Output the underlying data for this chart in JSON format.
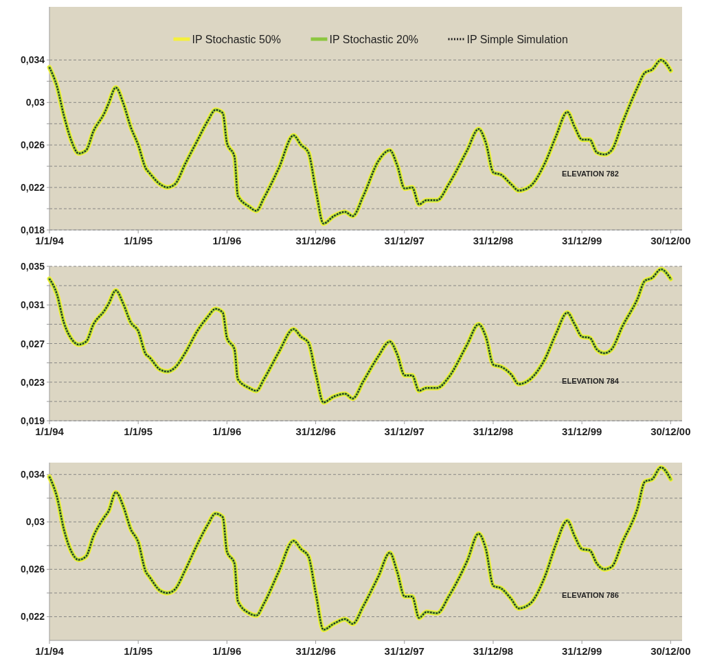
{
  "chart_data": [
    {
      "type": "line",
      "xlim": [
        "1994-01-01",
        "2001-02-15"
      ],
      "ylim": [
        0.018,
        0.039
      ],
      "grid": "y",
      "legend": "top",
      "xticks": [
        {
          "value": "1994-01-01",
          "label": "1/1/94"
        },
        {
          "value": "1995-01-01",
          "label": "1/1/95"
        },
        {
          "value": "1996-01-01",
          "label": "1/1/96"
        },
        {
          "value": "1996-12-31",
          "label": "31/12/96"
        },
        {
          "value": "1997-12-31",
          "label": "31/12/97"
        },
        {
          "value": "1998-12-31",
          "label": "31/12/98"
        },
        {
          "value": "1999-12-31",
          "label": "31/12/99"
        },
        {
          "value": "2000-12-30",
          "label": "30/12/00"
        }
      ],
      "yticks": [
        {
          "value": 0.018,
          "label": "0,018"
        },
        {
          "value": 0.02,
          "label": null
        },
        {
          "value": 0.022,
          "label": "0,022"
        },
        {
          "value": 0.024,
          "label": null
        },
        {
          "value": 0.026,
          "label": "0,026"
        },
        {
          "value": 0.028,
          "label": null
        },
        {
          "value": 0.03,
          "label": "0,03"
        },
        {
          "value": 0.032,
          "label": null
        },
        {
          "value": 0.034,
          "label": "0,034"
        }
      ],
      "annotations": [
        "ELEVATION 782"
      ],
      "x": [
        "1994-01-01",
        "1994-02-01",
        "1994-03-01",
        "1994-04-01",
        "1994-05-01",
        "1994-06-01",
        "1994-07-01",
        "1994-08-15",
        "1994-09-01",
        "1994-10-01",
        "1994-11-01",
        "1994-12-01",
        "1995-01-01",
        "1995-02-01",
        "1995-02-15",
        "1995-04-01",
        "1995-05-01",
        "1995-06-01",
        "1995-07-15",
        "1995-09-01",
        "1995-10-15",
        "1995-11-15",
        "1995-12-15",
        "1996-01-01",
        "1996-02-01",
        "1996-02-15",
        "1996-04-01",
        "1996-05-01",
        "1996-06-01",
        "1996-08-01",
        "1996-10-01",
        "1996-11-01",
        "1996-12-01",
        "1997-01-01",
        "1997-02-01",
        "1997-03-15",
        "1997-05-01",
        "1997-06-01",
        "1997-07-15",
        "1997-09-15",
        "1997-11-01",
        "1997-12-01",
        "1998-01-01",
        "1998-02-01",
        "1998-03-01",
        "1998-04-01",
        "1998-05-15",
        "1998-07-01",
        "1998-09-15",
        "1998-11-01",
        "1998-12-01",
        "1999-01-01",
        "1999-02-01",
        "1999-03-15",
        "1999-04-15",
        "1999-06-01",
        "1999-08-01",
        "1999-09-15",
        "1999-11-01",
        "1999-12-01",
        "2000-01-01",
        "2000-02-01",
        "2000-03-01",
        "2000-04-01",
        "2000-05-01",
        "2000-06-15",
        "2000-08-15",
        "2000-09-15",
        "2000-10-15",
        "2000-11-20",
        "2000-12-30"
      ],
      "series": [
        {
          "name": "IP Stochastic 50%",
          "color": "#f5f03c",
          "line_style": "solid",
          "values": [
            0.0333,
            0.0315,
            0.0288,
            0.0264,
            0.0252,
            0.0255,
            0.0273,
            0.029,
            0.0299,
            0.0314,
            0.0299,
            0.0277,
            0.026,
            0.0238,
            0.0234,
            0.0223,
            0.022,
            0.0223,
            0.0243,
            0.0264,
            0.0283,
            0.0293,
            0.029,
            0.0262,
            0.0249,
            0.0212,
            0.0202,
            0.0198,
            0.021,
            0.0238,
            0.0269,
            0.026,
            0.0253,
            0.0217,
            0.0186,
            0.0193,
            0.0197,
            0.0193,
            0.0212,
            0.0245,
            0.0255,
            0.0241,
            0.0219,
            0.022,
            0.0204,
            0.0208,
            0.0208,
            0.0223,
            0.0255,
            0.0275,
            0.0262,
            0.0234,
            0.0232,
            0.0223,
            0.0217,
            0.0221,
            0.0243,
            0.0268,
            0.0291,
            0.0277,
            0.0265,
            0.0265,
            0.0253,
            0.0251,
            0.0255,
            0.0281,
            0.0314,
            0.0328,
            0.0331,
            0.034,
            0.033
          ]
        },
        {
          "name": "IP Stochastic 20%",
          "color": "#8cc63f",
          "line_style": "solid",
          "values": [
            0.0333,
            0.0315,
            0.0288,
            0.0264,
            0.0252,
            0.0255,
            0.0273,
            0.029,
            0.0299,
            0.0314,
            0.0299,
            0.0277,
            0.026,
            0.0238,
            0.0234,
            0.0223,
            0.022,
            0.0223,
            0.0243,
            0.0264,
            0.0283,
            0.0293,
            0.029,
            0.0262,
            0.0249,
            0.0212,
            0.0202,
            0.0198,
            0.021,
            0.0238,
            0.0269,
            0.026,
            0.0253,
            0.0217,
            0.0186,
            0.0193,
            0.0197,
            0.0193,
            0.0212,
            0.0245,
            0.0255,
            0.0241,
            0.0219,
            0.022,
            0.0204,
            0.0208,
            0.0208,
            0.0223,
            0.0255,
            0.0275,
            0.0262,
            0.0234,
            0.0232,
            0.0223,
            0.0217,
            0.0221,
            0.0243,
            0.0268,
            0.0291,
            0.0277,
            0.0265,
            0.0265,
            0.0253,
            0.0251,
            0.0255,
            0.0281,
            0.0314,
            0.0328,
            0.0331,
            0.034,
            0.033
          ]
        },
        {
          "name": "IP Simple Simulation",
          "color": "#1a1a1a",
          "line_style": "dotted",
          "values": [
            0.0333,
            0.0315,
            0.0288,
            0.0264,
            0.0252,
            0.0255,
            0.0273,
            0.029,
            0.0299,
            0.0314,
            0.0299,
            0.0277,
            0.026,
            0.0238,
            0.0234,
            0.0223,
            0.022,
            0.0223,
            0.0243,
            0.0264,
            0.0283,
            0.0293,
            0.029,
            0.0262,
            0.0249,
            0.0212,
            0.0202,
            0.0198,
            0.021,
            0.0238,
            0.0269,
            0.026,
            0.0253,
            0.0217,
            0.0186,
            0.0193,
            0.0197,
            0.0193,
            0.0212,
            0.0245,
            0.0255,
            0.0241,
            0.0219,
            0.022,
            0.0204,
            0.0208,
            0.0208,
            0.0223,
            0.0255,
            0.0275,
            0.0262,
            0.0234,
            0.0232,
            0.0223,
            0.0217,
            0.0221,
            0.0243,
            0.0268,
            0.0291,
            0.0277,
            0.0265,
            0.0265,
            0.0253,
            0.0251,
            0.0255,
            0.0281,
            0.0314,
            0.0328,
            0.0331,
            0.034,
            0.033
          ]
        }
      ]
    },
    {
      "type": "line",
      "xlim": [
        "1994-01-01",
        "2001-02-15"
      ],
      "ylim": [
        0.019,
        0.035
      ],
      "grid": "y",
      "xticks": [
        {
          "value": "1994-01-01",
          "label": "1/1/94"
        },
        {
          "value": "1995-01-01",
          "label": "1/1/95"
        },
        {
          "value": "1996-01-01",
          "label": "1/1/96"
        },
        {
          "value": "1996-12-31",
          "label": "31/12/96"
        },
        {
          "value": "1997-12-31",
          "label": "31/12/97"
        },
        {
          "value": "1998-12-31",
          "label": "31/12/98"
        },
        {
          "value": "1999-12-31",
          "label": "31/12/99"
        },
        {
          "value": "2000-12-30",
          "label": "30/12/00"
        }
      ],
      "yticks": [
        {
          "value": 0.019,
          "label": "0,019"
        },
        {
          "value": 0.021,
          "label": null
        },
        {
          "value": 0.023,
          "label": "0,023"
        },
        {
          "value": 0.025,
          "label": null
        },
        {
          "value": 0.027,
          "label": "0,027"
        },
        {
          "value": 0.029,
          "label": null
        },
        {
          "value": 0.031,
          "label": "0,031"
        },
        {
          "value": 0.033,
          "label": null
        },
        {
          "value": 0.035,
          "label": "0,035"
        }
      ],
      "annotations": [
        "ELEVATION 784"
      ],
      "x": [
        "1994-01-01",
        "1994-02-01",
        "1994-03-01",
        "1994-04-01",
        "1994-05-01",
        "1994-06-01",
        "1994-07-01",
        "1994-08-15",
        "1994-09-01",
        "1994-10-01",
        "1994-11-01",
        "1994-12-01",
        "1995-01-01",
        "1995-02-01",
        "1995-02-15",
        "1995-04-01",
        "1995-05-01",
        "1995-06-01",
        "1995-07-15",
        "1995-09-01",
        "1995-10-15",
        "1995-11-15",
        "1995-12-15",
        "1996-01-01",
        "1996-02-01",
        "1996-02-15",
        "1996-04-01",
        "1996-05-01",
        "1996-06-01",
        "1996-08-01",
        "1996-10-01",
        "1996-11-01",
        "1996-12-01",
        "1997-01-01",
        "1997-02-01",
        "1997-03-15",
        "1997-05-01",
        "1997-06-01",
        "1997-07-15",
        "1997-09-15",
        "1997-11-01",
        "1997-12-01",
        "1998-01-01",
        "1998-02-01",
        "1998-03-01",
        "1998-04-01",
        "1998-05-15",
        "1998-07-01",
        "1998-09-15",
        "1998-11-01",
        "1998-12-01",
        "1999-01-01",
        "1999-02-01",
        "1999-03-15",
        "1999-04-15",
        "1999-06-01",
        "1999-08-01",
        "1999-09-15",
        "1999-11-01",
        "1999-12-01",
        "2000-01-01",
        "2000-02-01",
        "2000-03-01",
        "2000-04-01",
        "2000-05-01",
        "2000-06-15",
        "2000-08-15",
        "2000-09-15",
        "2000-10-15",
        "2000-11-20",
        "2000-12-30"
      ],
      "series": [
        {
          "color": "#f5f03c",
          "line_style": "solid",
          "values": [
            0.0337,
            0.0321,
            0.0292,
            0.0275,
            0.0269,
            0.0272,
            0.029,
            0.0304,
            0.0311,
            0.0325,
            0.0311,
            0.0292,
            0.0283,
            0.0259,
            0.0256,
            0.0243,
            0.0241,
            0.0245,
            0.0261,
            0.0283,
            0.0298,
            0.0306,
            0.0302,
            0.0276,
            0.0264,
            0.0233,
            0.0224,
            0.0221,
            0.0233,
            0.0261,
            0.0285,
            0.0277,
            0.0271,
            0.0238,
            0.0209,
            0.0215,
            0.0218,
            0.0213,
            0.0231,
            0.0257,
            0.0272,
            0.0259,
            0.0237,
            0.0237,
            0.0221,
            0.0224,
            0.0224,
            0.0235,
            0.0269,
            0.029,
            0.0277,
            0.0248,
            0.0246,
            0.0238,
            0.0228,
            0.0233,
            0.0254,
            0.028,
            0.0302,
            0.029,
            0.0277,
            0.0276,
            0.0264,
            0.026,
            0.0264,
            0.0288,
            0.0316,
            0.0335,
            0.0338,
            0.0347,
            0.0337
          ]
        },
        {
          "color": "#8cc63f",
          "line_style": "solid",
          "values": [
            0.0337,
            0.0321,
            0.0292,
            0.0275,
            0.0269,
            0.0272,
            0.029,
            0.0304,
            0.0311,
            0.0325,
            0.0311,
            0.0292,
            0.0283,
            0.0259,
            0.0256,
            0.0243,
            0.0241,
            0.0245,
            0.0261,
            0.0283,
            0.0298,
            0.0306,
            0.0302,
            0.0276,
            0.0264,
            0.0233,
            0.0224,
            0.0221,
            0.0233,
            0.0261,
            0.0285,
            0.0277,
            0.0271,
            0.0238,
            0.0209,
            0.0215,
            0.0218,
            0.0213,
            0.0231,
            0.0257,
            0.0272,
            0.0259,
            0.0237,
            0.0237,
            0.0221,
            0.0224,
            0.0224,
            0.0235,
            0.0269,
            0.029,
            0.0277,
            0.0248,
            0.0246,
            0.0238,
            0.0228,
            0.0233,
            0.0254,
            0.028,
            0.0302,
            0.029,
            0.0277,
            0.0276,
            0.0264,
            0.026,
            0.0264,
            0.0288,
            0.0316,
            0.0335,
            0.0338,
            0.0347,
            0.0337
          ]
        },
        {
          "color": "#1a1a1a",
          "line_style": "dotted",
          "values": [
            0.0337,
            0.0321,
            0.0292,
            0.0275,
            0.0269,
            0.0272,
            0.029,
            0.0304,
            0.0311,
            0.0325,
            0.0311,
            0.0292,
            0.0283,
            0.0259,
            0.0256,
            0.0243,
            0.0241,
            0.0245,
            0.0261,
            0.0283,
            0.0298,
            0.0306,
            0.0302,
            0.0276,
            0.0264,
            0.0233,
            0.0224,
            0.0221,
            0.0233,
            0.0261,
            0.0285,
            0.0277,
            0.0271,
            0.0238,
            0.0209,
            0.0215,
            0.0218,
            0.0213,
            0.0231,
            0.0257,
            0.0272,
            0.0259,
            0.0237,
            0.0237,
            0.0221,
            0.0224,
            0.0224,
            0.0235,
            0.0269,
            0.029,
            0.0277,
            0.0248,
            0.0246,
            0.0238,
            0.0228,
            0.0233,
            0.0254,
            0.028,
            0.0302,
            0.029,
            0.0277,
            0.0276,
            0.0264,
            0.026,
            0.0264,
            0.0288,
            0.0316,
            0.0335,
            0.0338,
            0.0347,
            0.0337
          ]
        }
      ]
    },
    {
      "type": "line",
      "xlim": [
        "1994-01-01",
        "2001-02-15"
      ],
      "ylim": [
        0.02,
        0.035
      ],
      "grid": "y",
      "xticks": [
        {
          "value": "1994-01-01",
          "label": "1/1/94"
        },
        {
          "value": "1995-01-01",
          "label": "1/1/95"
        },
        {
          "value": "1996-01-01",
          "label": "1/1/96"
        },
        {
          "value": "1996-12-31",
          "label": "31/12/96"
        },
        {
          "value": "1997-12-31",
          "label": "31/12/97"
        },
        {
          "value": "1998-12-31",
          "label": "31/12/98"
        },
        {
          "value": "1999-12-31",
          "label": "31/12/99"
        },
        {
          "value": "2000-12-30",
          "label": "30/12/00"
        }
      ],
      "yticks": [
        {
          "value": 0.022,
          "label": "0,022"
        },
        {
          "value": 0.024,
          "label": null
        },
        {
          "value": 0.026,
          "label": "0,026"
        },
        {
          "value": 0.028,
          "label": null
        },
        {
          "value": 0.03,
          "label": "0,03"
        },
        {
          "value": 0.032,
          "label": null
        },
        {
          "value": 0.034,
          "label": "0,034"
        }
      ],
      "annotations": [
        "ELEVATION 786"
      ],
      "x": [
        "1994-01-01",
        "1994-02-01",
        "1994-03-01",
        "1994-04-01",
        "1994-05-01",
        "1994-06-01",
        "1994-07-01",
        "1994-08-15",
        "1994-09-01",
        "1994-10-01",
        "1994-11-01",
        "1994-12-01",
        "1995-01-01",
        "1995-02-01",
        "1995-02-15",
        "1995-04-01",
        "1995-05-01",
        "1995-06-01",
        "1995-07-15",
        "1995-09-01",
        "1995-10-15",
        "1995-11-15",
        "1995-12-15",
        "1996-01-01",
        "1996-02-01",
        "1996-02-15",
        "1996-04-01",
        "1996-05-01",
        "1996-06-01",
        "1996-08-01",
        "1996-10-01",
        "1996-11-01",
        "1996-12-01",
        "1997-01-01",
        "1997-02-01",
        "1997-03-15",
        "1997-05-01",
        "1997-06-01",
        "1997-07-15",
        "1997-09-15",
        "1997-11-01",
        "1997-12-01",
        "1998-01-01",
        "1998-02-01",
        "1998-03-01",
        "1998-04-01",
        "1998-05-15",
        "1998-07-01",
        "1998-09-15",
        "1998-11-01",
        "1998-12-01",
        "1999-01-01",
        "1999-02-01",
        "1999-03-15",
        "1999-04-15",
        "1999-06-01",
        "1999-08-01",
        "1999-09-15",
        "1999-11-01",
        "1999-12-01",
        "2000-01-01",
        "2000-02-01",
        "2000-03-01",
        "2000-04-01",
        "2000-05-01",
        "2000-06-15",
        "2000-08-15",
        "2000-09-15",
        "2000-10-15",
        "2000-11-20",
        "2000-12-30"
      ],
      "series": [
        {
          "color": "#f5f03c",
          "line_style": "solid",
          "values": [
            0.0338,
            0.0321,
            0.0294,
            0.0275,
            0.0268,
            0.0271,
            0.0288,
            0.0304,
            0.0309,
            0.0325,
            0.0313,
            0.0294,
            0.0283,
            0.0258,
            0.0254,
            0.0242,
            0.024,
            0.0243,
            0.026,
            0.0281,
            0.0298,
            0.0307,
            0.0304,
            0.0275,
            0.0265,
            0.0233,
            0.0223,
            0.0221,
            0.0231,
            0.0258,
            0.0284,
            0.0277,
            0.0271,
            0.0239,
            0.0209,
            0.0214,
            0.0218,
            0.0214,
            0.0229,
            0.0254,
            0.0274,
            0.0258,
            0.0237,
            0.0237,
            0.0219,
            0.0224,
            0.0223,
            0.0237,
            0.0267,
            0.029,
            0.0277,
            0.0246,
            0.0244,
            0.0235,
            0.0227,
            0.0231,
            0.0254,
            0.0281,
            0.0301,
            0.0288,
            0.0277,
            0.0276,
            0.0265,
            0.026,
            0.0262,
            0.0283,
            0.0311,
            0.0334,
            0.0336,
            0.0346,
            0.0336
          ]
        },
        {
          "color": "#8cc63f",
          "line_style": "solid",
          "values": [
            0.0338,
            0.0321,
            0.0294,
            0.0275,
            0.0268,
            0.0271,
            0.0288,
            0.0304,
            0.0309,
            0.0325,
            0.0313,
            0.0294,
            0.0283,
            0.0258,
            0.0254,
            0.0242,
            0.024,
            0.0243,
            0.026,
            0.0281,
            0.0298,
            0.0307,
            0.0304,
            0.0275,
            0.0265,
            0.0233,
            0.0223,
            0.0221,
            0.0231,
            0.0258,
            0.0284,
            0.0277,
            0.0271,
            0.0239,
            0.0209,
            0.0214,
            0.0218,
            0.0214,
            0.0229,
            0.0254,
            0.0274,
            0.0258,
            0.0237,
            0.0237,
            0.0219,
            0.0224,
            0.0223,
            0.0237,
            0.0267,
            0.029,
            0.0277,
            0.0246,
            0.0244,
            0.0235,
            0.0227,
            0.0231,
            0.0254,
            0.0281,
            0.0301,
            0.0288,
            0.0277,
            0.0276,
            0.0265,
            0.026,
            0.0262,
            0.0283,
            0.0311,
            0.0334,
            0.0336,
            0.0346,
            0.0336
          ]
        },
        {
          "color": "#1a1a1a",
          "line_style": "dotted",
          "values": [
            0.0338,
            0.0321,
            0.0294,
            0.0275,
            0.0268,
            0.0271,
            0.0288,
            0.0304,
            0.0309,
            0.0325,
            0.0313,
            0.0294,
            0.0283,
            0.0258,
            0.0254,
            0.0242,
            0.024,
            0.0243,
            0.026,
            0.0281,
            0.0298,
            0.0307,
            0.0304,
            0.0275,
            0.0265,
            0.0233,
            0.0223,
            0.0221,
            0.0231,
            0.0258,
            0.0284,
            0.0277,
            0.0271,
            0.0239,
            0.0209,
            0.0214,
            0.0218,
            0.0214,
            0.0229,
            0.0254,
            0.0274,
            0.0258,
            0.0237,
            0.0237,
            0.0219,
            0.0224,
            0.0223,
            0.0237,
            0.0267,
            0.029,
            0.0277,
            0.0246,
            0.0244,
            0.0235,
            0.0227,
            0.0231,
            0.0254,
            0.0281,
            0.0301,
            0.0288,
            0.0277,
            0.0276,
            0.0265,
            0.026,
            0.0262,
            0.0283,
            0.0311,
            0.0334,
            0.0336,
            0.0346,
            0.0336
          ]
        }
      ]
    }
  ]
}
